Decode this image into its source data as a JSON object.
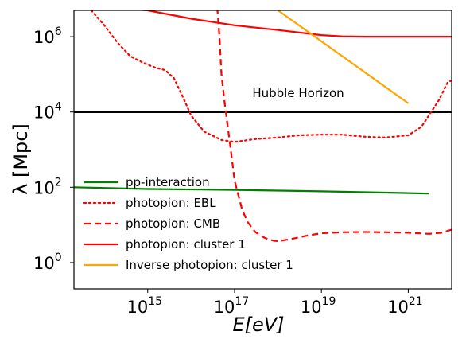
{
  "chart_data": {
    "type": "line",
    "title": "",
    "xlabel": "E[eV]",
    "ylabel": "λ [Mpc]",
    "xscale": "log",
    "yscale": "log",
    "xlim": [
      20000000000000.0,
      1e+22
    ],
    "ylim": [
      0.2,
      5000000.0
    ],
    "x_ticks": [
      {
        "base": "10",
        "exp": "15",
        "value": 1000000000000000.0
      },
      {
        "base": "10",
        "exp": "17",
        "value": 1e+17
      },
      {
        "base": "10",
        "exp": "19",
        "value": 1e+19
      },
      {
        "base": "10",
        "exp": "21",
        "value": 1e+21
      }
    ],
    "y_ticks": [
      {
        "base": "10",
        "exp": "0",
        "value": 1
      },
      {
        "base": "10",
        "exp": "2",
        "value": 100
      },
      {
        "base": "10",
        "exp": "4",
        "value": 10000
      },
      {
        "base": "10",
        "exp": "6",
        "value": 1000000
      }
    ],
    "hline": {
      "value": 10000,
      "label": "Hubble Horizon",
      "color": "#000000"
    },
    "legend_position": "lower-left",
    "series": [
      {
        "name": "pp-interaction",
        "color": "#008000",
        "style": "solid",
        "x": [
          20000000000000.0,
          1000000000000000.0,
          1e+17,
          1e+19,
          1e+21,
          3e+21
        ],
        "y": [
          100,
          90,
          85,
          78,
          70,
          68
        ]
      },
      {
        "name": "photopion: EBL",
        "color": "#ff0000",
        "style": "dotted",
        "x": [
          50000000000000.0,
          100000000000000.0,
          200000000000000.0,
          400000000000000.0,
          800000000000000.0,
          1500000000000000.0,
          2500000000000000.0,
          4000000000000000.0,
          6000000000000000.0,
          1e+16,
          2e+16,
          5e+16,
          1e+17,
          3e+17,
          1e+18,
          3e+18,
          1e+19,
          3e+19,
          1e+20,
          3e+20,
          1e+21,
          2e+21,
          5e+21,
          8e+21,
          1e+22
        ],
        "y": [
          5000000.0,
          2000000.0,
          700000.0,
          300000.0,
          200000.0,
          150000.0,
          130000.0,
          80000.0,
          30000.0,
          8000.0,
          3000.0,
          1800.0,
          1600.0,
          1900.0,
          2100.0,
          2400.0,
          2500.0,
          2500.0,
          2200.0,
          2100.0,
          2400.0,
          4000.0,
          20000.0,
          60000.0,
          70000.0
        ]
      },
      {
        "name": "photopion: CMB",
        "color": "#ff0000",
        "style": "dashed",
        "x": [
          4e+16,
          4.5e+16,
          5e+16,
          6e+16,
          8e+16,
          1e+17,
          1.5e+17,
          2e+17,
          3e+17,
          5e+17,
          8e+17,
          1e+18,
          2e+18,
          5e+18,
          1e+19,
          3e+19,
          1e+20,
          3e+20,
          1e+21,
          3e+21,
          6e+21,
          1e+22
        ],
        "y": [
          6000000.0,
          1000000.0,
          100000.0,
          15000.0,
          1200.0,
          150,
          25,
          12,
          6.5,
          4.5,
          3.8,
          3.7,
          4.2,
          5.3,
          6,
          6.4,
          6.5,
          6.4,
          6.2,
          5.8,
          6.2,
          7.5
        ]
      },
      {
        "name": "photopion: cluster 1",
        "color": "#ff0000",
        "style": "solid",
        "x": [
          20000000000000.0,
          100000000000000.0,
          1000000000000000.0,
          1e+16,
          1e+17,
          1e+18,
          1e+19,
          3e+19,
          1e+20,
          1e+21,
          1e+22
        ],
        "y": [
          7000000.0,
          6000000.0,
          5000000.0,
          3000000.0,
          2000000.0,
          1500000.0,
          1100000.0,
          1020000.0,
          1000000.0,
          1000000.0,
          1000000.0
        ]
      },
      {
        "name": "Inverse photopion: cluster 1",
        "color": "#ffa500",
        "style": "solid",
        "x": [
          1e+18,
          1e+21
        ],
        "y": [
          5000000.0,
          17000.0
        ]
      }
    ]
  }
}
